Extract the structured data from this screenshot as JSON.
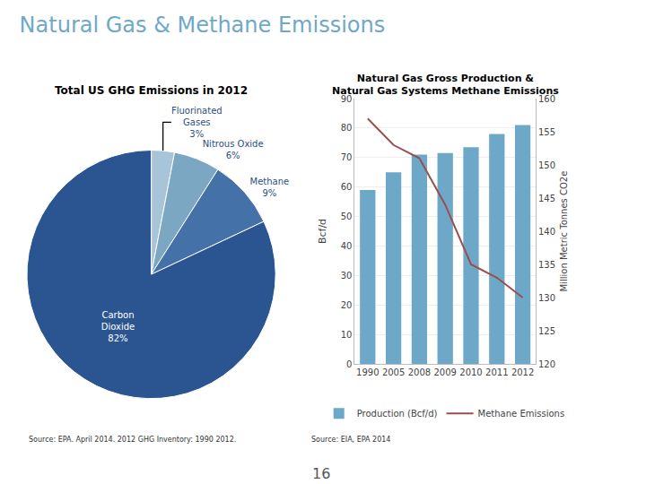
{
  "title": "Natural Gas & Methane Emissions",
  "annotations": [
    "16"
  ],
  "chart_data": [
    {
      "type": "pie",
      "title": "Total US GHG Emissions in 2012",
      "values": [
        3,
        6,
        9,
        82
      ],
      "value_labels": [
        "Fluorinated\nGases\n3%",
        "Nitrous Oxide\n6%",
        "Methane\n9%",
        "Carbon\nDioxide\n82%"
      ],
      "colors": [
        "#A8C4D8",
        "#7BA7C2",
        "#4472A8",
        "#2B5591"
      ],
      "data_labels": true,
      "annotations": [
        "Source: EPA. April 2014. 2012 GHG Inventory: 1990 2012."
      ]
    },
    {
      "type": "bar",
      "title": "Natural Gas Gross Production &\nNatural Gas Systems Methane Emissions",
      "categories": [
        "1990",
        "2005",
        "2008",
        "2009",
        "2010",
        "2011",
        "2012"
      ],
      "series": [
        {
          "name": "Production (Bcf/d)",
          "type": "bar",
          "color": "#6EA8C8",
          "values": [
            59,
            65,
            71,
            71.5,
            73.5,
            78,
            81
          ]
        },
        {
          "name": "Methane Emissions",
          "type": "line",
          "color": "#9B4E4E",
          "axis": "y2",
          "values": [
            157,
            153,
            151,
            144,
            135,
            133,
            130
          ]
        }
      ],
      "ylabel": "Bcf/d",
      "y2label": "Million Metric Tonnes CO2e",
      "ylim": [
        0,
        90
      ],
      "yticks": [
        0,
        10,
        20,
        30,
        40,
        50,
        60,
        70,
        80,
        90
      ],
      "y2lim": [
        120,
        160
      ],
      "y2ticks": [
        120,
        125,
        130,
        135,
        140,
        145,
        150,
        155,
        160
      ],
      "grid": true,
      "legend": "bottom",
      "annotations": [
        "Source: EIA, EPA 2014"
      ]
    }
  ]
}
